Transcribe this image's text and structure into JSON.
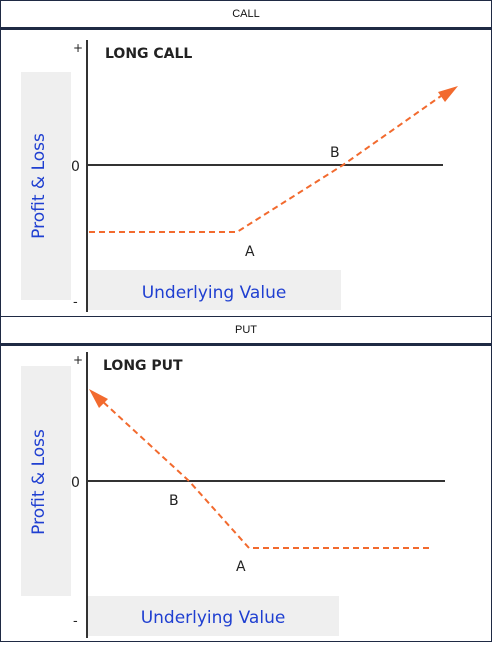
{
  "call": {
    "header": "CALL",
    "title": "LONG CALL",
    "ylabel": "Profit & Loss",
    "xlabel": "Underlying Value",
    "plus": "+",
    "zero": "0",
    "minus": "-",
    "point_a": "A",
    "point_b": "B"
  },
  "put": {
    "header": "PUT",
    "title": "LONG PUT",
    "ylabel": "Profit & Loss",
    "xlabel": "Underlying Value",
    "plus": "+",
    "zero": "0",
    "minus": "-",
    "point_a": "A",
    "point_b": "B"
  },
  "colors": {
    "payoff": "#f26a2e",
    "label_blue": "#1f3fd1",
    "label_bg": "#efefef",
    "axis": "#333333"
  }
}
